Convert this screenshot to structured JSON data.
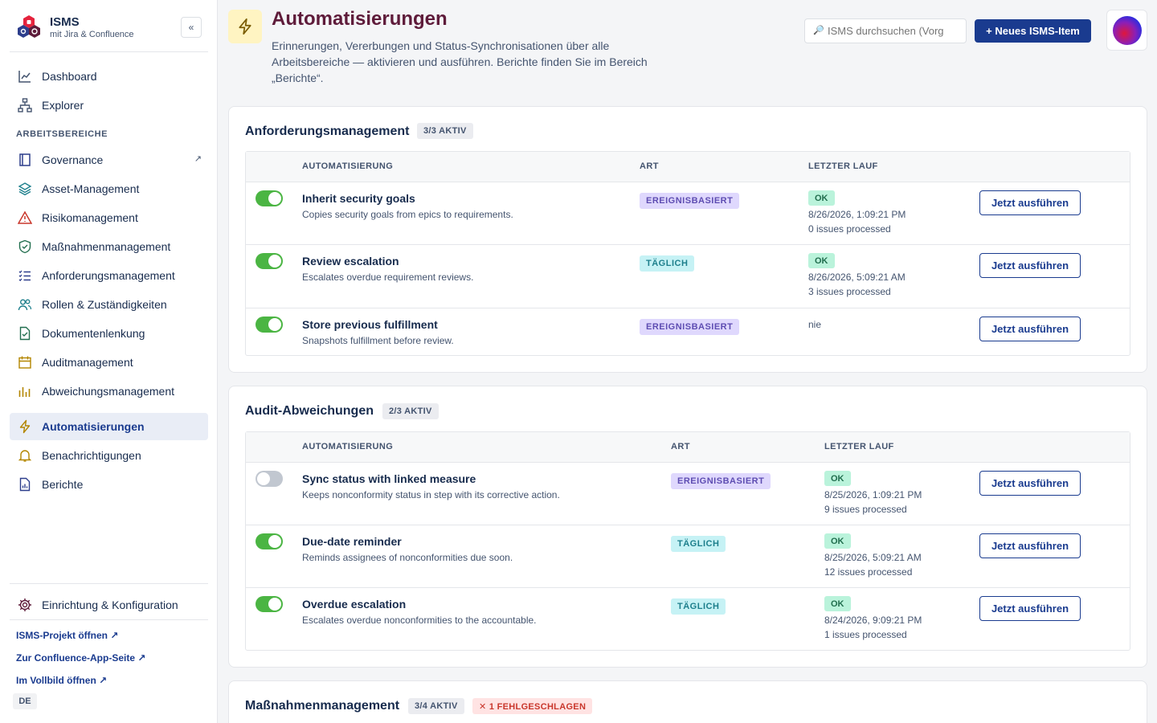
{
  "brand": {
    "title": "ISMS",
    "subtitle": "mit Jira & Confluence",
    "collapse_label": "«"
  },
  "nav": {
    "top": [
      {
        "label": "Dashboard",
        "icon": "chart-line-icon"
      },
      {
        "label": "Explorer",
        "icon": "hierarchy-icon"
      }
    ],
    "section_label": "ARBEITSBEREICHE",
    "workspaces": [
      {
        "label": "Governance",
        "icon": "book-icon",
        "ext": "↗"
      },
      {
        "label": "Asset-Management",
        "icon": "layers-icon"
      },
      {
        "label": "Risikomanagement",
        "icon": "warning-icon"
      },
      {
        "label": "Maßnahmenmanagement",
        "icon": "shield-check-icon"
      },
      {
        "label": "Anforderungsmanagement",
        "icon": "checklist-icon"
      },
      {
        "label": "Rollen & Zuständigkeiten",
        "icon": "people-icon"
      },
      {
        "label": "Dokumentenlenkung",
        "icon": "document-check-icon"
      },
      {
        "label": "Auditmanagement",
        "icon": "calendar-icon"
      },
      {
        "label": "Abweichungsmanagement",
        "icon": "bar-chart-icon"
      }
    ],
    "tools": [
      {
        "label": "Automatisierungen",
        "icon": "lightning-icon",
        "active": true
      },
      {
        "label": "Benachrichtigungen",
        "icon": "bell-icon"
      },
      {
        "label": "Berichte",
        "icon": "report-icon"
      }
    ],
    "settings": {
      "label": "Einrichtung & Konfiguration",
      "icon": "gear-icon"
    },
    "links": [
      "ISMS-Projekt öffnen ↗",
      "Zur Confluence-App-Seite ↗",
      "Im Vollbild öffnen ↗"
    ],
    "language": "DE"
  },
  "header": {
    "title": "Automatisierungen",
    "description": "Erinnerungen, Vererbungen und Status-Synchronisationen über alle Arbeitsbereiche — aktivieren und ausführen. Berichte finden Sie im Bereich „Berichte“.",
    "search_placeholder": "ISMS durchsuchen (Vorg",
    "search_icon": "🔎",
    "new_button": "+ Neues ISMS-Item"
  },
  "columns": {
    "automation": "AUTOMATISIERUNG",
    "type": "ART",
    "last_run": "LETZTER LAUF"
  },
  "run_label": "Jetzt ausführen",
  "sections": [
    {
      "title": "Anforderungsmanagement",
      "active_pill": "3/3 AKTIV",
      "rows": [
        {
          "enabled": true,
          "name": "Inherit security goals",
          "desc": "Copies security goals from epics to requirements.",
          "type": "EREIGNISBASIERT",
          "type_kind": "event",
          "status": "OK",
          "date": "8/26/2026, 1:09:21 PM",
          "count": "0 issues processed"
        },
        {
          "enabled": true,
          "name": "Review escalation",
          "desc": "Escalates overdue requirement reviews.",
          "type": "TÄGLICH",
          "type_kind": "daily",
          "status": "OK",
          "date": "8/26/2026, 5:09:21 AM",
          "count": "3 issues processed"
        },
        {
          "enabled": true,
          "name": "Store previous fulfillment",
          "desc": "Snapshots fulfillment before review.",
          "type": "EREIGNISBASIERT",
          "type_kind": "event",
          "none": "nie"
        }
      ]
    },
    {
      "title": "Audit-Abweichungen",
      "active_pill": "2/3 AKTIV",
      "rows": [
        {
          "enabled": false,
          "name": "Sync status with linked measure",
          "desc": "Keeps nonconformity status in step with its corrective action.",
          "type": "EREIGNISBASIERT",
          "type_kind": "event",
          "status": "OK",
          "date": "8/25/2026, 1:09:21 PM",
          "count": "9 issues processed"
        },
        {
          "enabled": true,
          "name": "Due-date reminder",
          "desc": "Reminds assignees of nonconformities due soon.",
          "type": "TÄGLICH",
          "type_kind": "daily",
          "status": "OK",
          "date": "8/25/2026, 5:09:21 AM",
          "count": "12 issues processed"
        },
        {
          "enabled": true,
          "name": "Overdue escalation",
          "desc": "Escalates overdue nonconformities to the accountable.",
          "type": "TÄGLICH",
          "type_kind": "daily",
          "status": "OK",
          "date": "8/24/2026, 9:09:21 PM",
          "count": "1 issues processed"
        }
      ]
    },
    {
      "title": "Maßnahmenmanagement",
      "active_pill": "3/4 AKTIV",
      "failed_pill": "✕ 1 FEHLGESCHLAGEN"
    }
  ]
}
